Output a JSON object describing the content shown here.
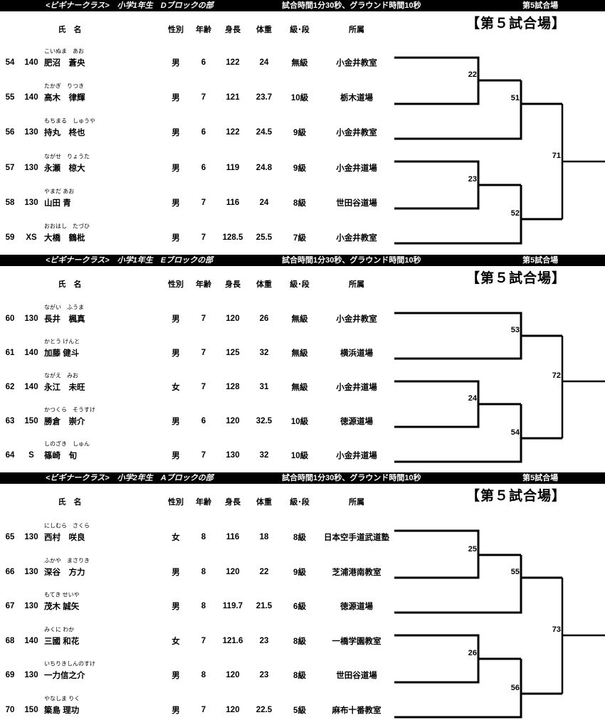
{
  "columns": {
    "name": "氏　名",
    "sex": "性別",
    "age": "年齢",
    "height": "身長",
    "weight": "体重",
    "grade": "級･段",
    "affiliation": "所属"
  },
  "sections": [
    {
      "title": "<ビギナークラス>　小学1年生　Dブロックの部",
      "time": "試合時間1分30秒、グラウンド時間10秒",
      "venue_small": "第5試合場",
      "venue_big": "【第５試合場】",
      "entries": [
        {
          "no": "54",
          "cls": "140",
          "kana": "こいぬま　あお",
          "name": "肥沼　蒼央",
          "sex": "男",
          "age": "6",
          "height": "122",
          "weight": "24",
          "grade": "無級",
          "affiliation": "小金井教室"
        },
        {
          "no": "55",
          "cls": "140",
          "kana": "たかぎ　りつき",
          "name": "高木　律輝",
          "sex": "男",
          "age": "7",
          "height": "121",
          "weight": "23.7",
          "grade": "10級",
          "affiliation": "栃木道場"
        },
        {
          "no": "56",
          "cls": "130",
          "kana": "もちまる　しゅうや",
          "name": "持丸　柊也",
          "sex": "男",
          "age": "6",
          "height": "122",
          "weight": "24.5",
          "grade": "9級",
          "affiliation": "小金井教室"
        },
        {
          "no": "57",
          "cls": "130",
          "kana": "ながせ　りょうた",
          "name": "永瀬　椋大",
          "sex": "男",
          "age": "6",
          "height": "119",
          "weight": "24.8",
          "grade": "9級",
          "affiliation": "小金井道場"
        },
        {
          "no": "58",
          "cls": "130",
          "kana": "やまだ あお",
          "name": "山田 青",
          "sex": "男",
          "age": "7",
          "height": "116",
          "weight": "24",
          "grade": "8級",
          "affiliation": "世田谷道場"
        },
        {
          "no": "59",
          "cls": "XS",
          "kana": "おおはし　たづひ",
          "name": "大橋　鶴枇",
          "sex": "男",
          "age": "7",
          "height": "128.5",
          "weight": "25.5",
          "grade": "7級",
          "affiliation": "小金井教室"
        }
      ],
      "matches": [
        "22",
        "51",
        "23",
        "52",
        "71"
      ]
    },
    {
      "title": "<ビギナークラス>　小学1年生　Eブロックの部",
      "time": "試合時間1分30秒、グラウンド時間10秒",
      "venue_small": "第5試合場",
      "venue_big": "【第５試合場】",
      "entries": [
        {
          "no": "60",
          "cls": "130",
          "kana": "ながい　ふうま",
          "name": "長井　楓真",
          "sex": "男",
          "age": "7",
          "height": "120",
          "weight": "26",
          "grade": "無級",
          "affiliation": "小金井教室"
        },
        {
          "no": "61",
          "cls": "140",
          "kana": "かとう けんと",
          "name": "加藤 健斗",
          "sex": "男",
          "age": "7",
          "height": "125",
          "weight": "32",
          "grade": "無級",
          "affiliation": "横浜道場"
        },
        {
          "no": "62",
          "cls": "140",
          "kana": "ながえ　みお",
          "name": "永江　未旺",
          "sex": "女",
          "age": "7",
          "height": "128",
          "weight": "31",
          "grade": "無級",
          "affiliation": "小金井道場"
        },
        {
          "no": "63",
          "cls": "150",
          "kana": "かつくら　そうすけ",
          "name": "勝倉　崇介",
          "sex": "男",
          "age": "6",
          "height": "120",
          "weight": "32.5",
          "grade": "10級",
          "affiliation": "徳源道場"
        },
        {
          "no": "64",
          "cls": "S",
          "kana": "しのざき　しゅん",
          "name": "篠崎　旬",
          "sex": "男",
          "age": "7",
          "height": "130",
          "weight": "32",
          "grade": "10級",
          "affiliation": "小金井道場"
        }
      ],
      "matches": [
        "53",
        "24",
        "54",
        "72"
      ]
    },
    {
      "title": "<ビギナークラス>　小学2年生　Aブロックの部",
      "time": "試合時間1分30秒、グラウンド時間10秒",
      "venue_small": "第5試合場",
      "venue_big": "【第５試合場】",
      "entries": [
        {
          "no": "65",
          "cls": "130",
          "kana": "にしむら　さくら",
          "name": "西村　咲良",
          "sex": "女",
          "age": "8",
          "height": "116",
          "weight": "18",
          "grade": "8級",
          "affiliation": "日本空手道武道塾"
        },
        {
          "no": "66",
          "cls": "130",
          "kana": "ふかや　まさりき",
          "name": "深谷　方力",
          "sex": "男",
          "age": "8",
          "height": "120",
          "weight": "22",
          "grade": "9級",
          "affiliation": "芝浦港南教室"
        },
        {
          "no": "67",
          "cls": "130",
          "kana": "もてき せいや",
          "name": "茂木 誠矢",
          "sex": "男",
          "age": "8",
          "height": "119.7",
          "weight": "21.5",
          "grade": "6級",
          "affiliation": "徳源道場"
        },
        {
          "no": "68",
          "cls": "140",
          "kana": "みくに わか",
          "name": "三國 和花",
          "sex": "女",
          "age": "7",
          "height": "121.6",
          "weight": "23",
          "grade": "8級",
          "affiliation": "一橋学園教室"
        },
        {
          "no": "69",
          "cls": "130",
          "kana": "いちりきしんのすけ",
          "name": "一力信之介",
          "sex": "男",
          "age": "8",
          "height": "120",
          "weight": "23",
          "grade": "8級",
          "affiliation": "世田谷道場"
        },
        {
          "no": "70",
          "cls": "150",
          "kana": "やなしま りく",
          "name": "簗島 理功",
          "sex": "男",
          "age": "7",
          "height": "120",
          "weight": "22.5",
          "grade": "5級",
          "affiliation": "麻布十番教室"
        }
      ],
      "matches": [
        "25",
        "55",
        "26",
        "56",
        "73"
      ]
    }
  ]
}
